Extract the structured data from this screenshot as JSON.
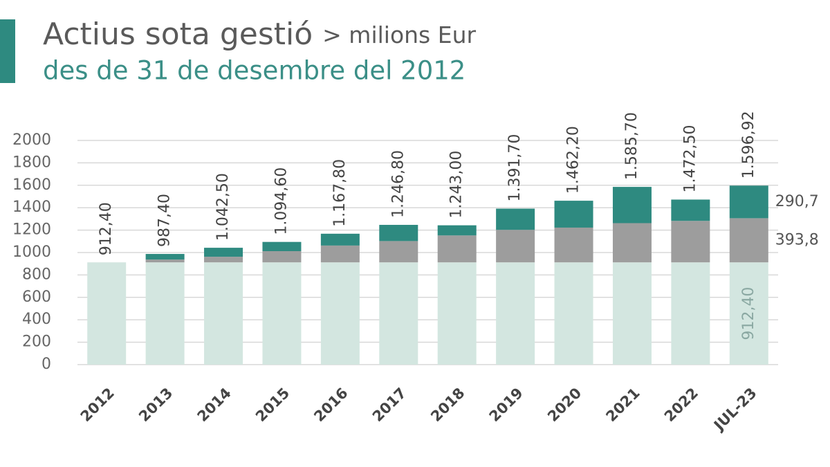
{
  "chart_data": {
    "type": "stacked_bar",
    "title": "Actius sota gestió",
    "unit": "> milions Eur",
    "subtitle": "des de 31 de desembre del 2012",
    "categories": [
      "2012",
      "2013",
      "2014",
      "2015",
      "2016",
      "2017",
      "2018",
      "2019",
      "2020",
      "2021",
      "2022",
      "JUL-23"
    ],
    "series": [
      {
        "color": "#d3e6e0",
        "values": [
          912.4,
          912.4,
          912.4,
          912.4,
          912.4,
          912.4,
          912.4,
          912.4,
          912.4,
          912.4,
          912.4,
          912.4
        ],
        "value_labels": [
          null,
          null,
          null,
          null,
          null,
          null,
          null,
          null,
          null,
          null,
          null,
          "912,40"
        ]
      },
      {
        "color": "#9d9d9d",
        "values": [
          0,
          25,
          50,
          100,
          150,
          190,
          240,
          290,
          310,
          350,
          370,
          393.8
        ],
        "value_labels": [
          null,
          null,
          null,
          null,
          null,
          null,
          null,
          null,
          null,
          null,
          null,
          "393,8"
        ]
      },
      {
        "color": "#2e8a80",
        "values": [
          0,
          50,
          80.1,
          82.2,
          105.4,
          144.4,
          90.6,
          189.3,
          239.8,
          323.3,
          190.1,
          290.7
        ],
        "value_labels": [
          null,
          null,
          null,
          null,
          null,
          null,
          null,
          null,
          null,
          null,
          null,
          "290,7"
        ]
      }
    ],
    "totals": {
      "values": [
        912.4,
        987.4,
        1042.5,
        1094.6,
        1167.8,
        1246.8,
        1243.0,
        1391.7,
        1462.2,
        1585.7,
        1472.5,
        1596.92
      ],
      "value_labels": [
        "912,40",
        "987,40",
        "1.042,50",
        "1.094,60",
        "1.167,80",
        "1.246,80",
        "1.243,00",
        "1.391,70",
        "1.462,20",
        "1.585,70",
        "1.472,50",
        "1.596,92"
      ]
    },
    "ylim": [
      0,
      2000
    ],
    "yticks": [
      0,
      200,
      400,
      600,
      800,
      1000,
      1200,
      1400,
      1600,
      1800,
      2000
    ],
    "grid": true
  }
}
